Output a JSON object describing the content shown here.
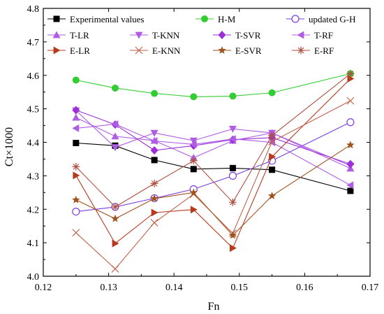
{
  "chart_data": {
    "type": "line",
    "title": "",
    "xlabel": "Fn",
    "ylabel": "Ct×1000",
    "xlim": [
      0.12,
      0.17
    ],
    "ylim": [
      4.0,
      4.8
    ],
    "xticks": [
      0.12,
      0.13,
      0.14,
      0.15,
      0.16,
      0.17
    ],
    "xtick_labels": [
      "0.12",
      "0.13",
      "0.14",
      "0.15",
      "0.16",
      "0.17"
    ],
    "yticks": [
      4.0,
      4.1,
      4.2,
      4.3,
      4.4,
      4.5,
      4.6,
      4.7,
      4.8
    ],
    "ytick_labels": [
      "4.0",
      "4.1",
      "4.2",
      "4.3",
      "4.4",
      "4.5",
      "4.6",
      "4.7",
      "4.8"
    ],
    "grid": false,
    "legend_position": "top",
    "x": [
      0.125,
      0.131,
      0.137,
      0.143,
      0.149,
      0.155,
      0.167
    ],
    "series": [
      {
        "name": "Experimental values",
        "color": "#000000",
        "marker": "square",
        "values": [
          4.398,
          4.39,
          4.347,
          4.32,
          4.323,
          4.318,
          4.255
        ]
      },
      {
        "name": "H-M",
        "color": "#33cc33",
        "marker": "circle-filled",
        "values": [
          4.586,
          4.562,
          4.546,
          4.536,
          4.538,
          4.548,
          4.605
        ]
      },
      {
        "name": "updated G-H",
        "color": "#7a3fe0",
        "marker": "circle-open",
        "values": [
          4.193,
          4.207,
          4.233,
          4.26,
          4.3,
          4.345,
          4.46
        ]
      },
      {
        "name": "T-LR",
        "color": "#b05de6",
        "marker": "triangle-up",
        "values": [
          4.474,
          4.418,
          4.405,
          4.354,
          4.405,
          4.428,
          4.322
        ]
      },
      {
        "name": "T-KNN",
        "color": "#b05de6",
        "marker": "triangle-down",
        "values": [
          4.495,
          4.385,
          4.428,
          4.405,
          4.44,
          4.428,
          4.33
        ]
      },
      {
        "name": "T-SVR",
        "color": "#9b30d9",
        "marker": "diamond",
        "values": [
          4.496,
          4.453,
          4.376,
          4.39,
          4.408,
          4.414,
          4.335
        ]
      },
      {
        "name": "T-RF",
        "color": "#b05de6",
        "marker": "triangle-left",
        "values": [
          4.442,
          4.454,
          4.404,
          4.394,
          4.41,
          4.4,
          4.272
        ]
      },
      {
        "name": "E-LR",
        "color": "#b83a1e",
        "marker": "triangle-right",
        "values": [
          4.301,
          4.098,
          4.19,
          4.199,
          4.084,
          4.357,
          4.59
        ]
      },
      {
        "name": "E-KNN",
        "color": "#c0624a",
        "marker": "x",
        "values": [
          4.13,
          4.022,
          4.16,
          4.245,
          4.128,
          4.402,
          4.524
        ]
      },
      {
        "name": "E-SVR",
        "color": "#a0521d",
        "marker": "star",
        "values": [
          4.228,
          4.172,
          4.232,
          4.25,
          4.122,
          4.24,
          4.392
        ]
      },
      {
        "name": "E-RF",
        "color": "#b05040",
        "marker": "asterisk",
        "values": [
          4.327,
          4.207,
          4.277,
          4.345,
          4.221,
          4.42,
          4.605
        ]
      }
    ]
  }
}
